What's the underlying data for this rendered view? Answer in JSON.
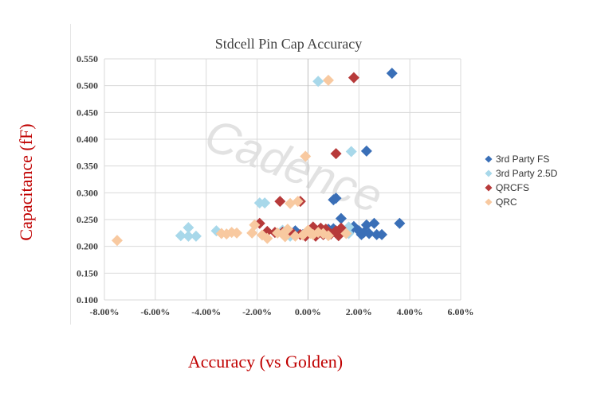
{
  "chart_data": {
    "type": "scatter",
    "title": "Stdcell Pin Cap Accuracy",
    "xlabel": "Accuracy (vs Golden)",
    "ylabel": "Capacitance (fF)",
    "watermark": "Cadence",
    "xlim": [
      -0.08,
      0.06
    ],
    "ylim": [
      0.1,
      0.55
    ],
    "x_ticks": [
      -0.08,
      -0.06,
      -0.04,
      -0.02,
      0.0,
      0.02,
      0.04,
      0.06
    ],
    "x_tick_labels": [
      "-8.00%",
      "-6.00%",
      "-4.00%",
      "-2.00%",
      "0.00%",
      "2.00%",
      "4.00%",
      "6.00%"
    ],
    "y_ticks": [
      0.1,
      0.15,
      0.2,
      0.25,
      0.3,
      0.35,
      0.4,
      0.45,
      0.5,
      0.55
    ],
    "y_tick_labels": [
      "0.100",
      "0.150",
      "0.200",
      "0.250",
      "0.300",
      "0.350",
      "0.400",
      "0.450",
      "0.500",
      "0.550"
    ],
    "grid": true,
    "legend_position": "right",
    "marker": "diamond",
    "series": [
      {
        "name": "3rd Party FS",
        "color": "#3a6fb7",
        "points": [
          [
            0.033,
            0.523
          ],
          [
            0.023,
            0.378
          ],
          [
            0.011,
            0.29
          ],
          [
            0.01,
            0.287
          ],
          [
            0.013,
            0.252
          ],
          [
            0.036,
            0.243
          ],
          [
            0.026,
            0.243
          ],
          [
            0.023,
            0.24
          ],
          [
            0.018,
            0.237
          ],
          [
            0.02,
            0.229
          ],
          [
            0.022,
            0.226
          ],
          [
            0.024,
            0.224
          ],
          [
            0.027,
            0.222
          ],
          [
            0.029,
            0.222
          ],
          [
            0.021,
            0.222
          ],
          [
            0.016,
            0.226
          ],
          [
            0.012,
            0.226
          ],
          [
            -0.002,
            0.222
          ],
          [
            0.005,
            0.229
          ],
          [
            0.01,
            0.233
          ],
          [
            0.008,
            0.232
          ],
          [
            -0.005,
            0.229
          ]
        ]
      },
      {
        "name": "3rd Party 2.5D",
        "color": "#a8d8ea",
        "points": [
          [
            0.004,
            0.508
          ],
          [
            0.017,
            0.377
          ],
          [
            -0.017,
            0.281
          ],
          [
            -0.019,
            0.281
          ],
          [
            -0.047,
            0.235
          ],
          [
            -0.05,
            0.22
          ],
          [
            -0.047,
            0.219
          ],
          [
            -0.044,
            0.219
          ],
          [
            -0.036,
            0.229
          ],
          [
            0.016,
            0.236
          ],
          [
            0.016,
            0.224
          ],
          [
            -0.01,
            0.23
          ],
          [
            -0.007,
            0.219
          ],
          [
            0.0,
            0.224
          ],
          [
            0.006,
            0.222
          ]
        ]
      },
      {
        "name": "QRCFS",
        "color": "#b73a3a",
        "points": [
          [
            0.018,
            0.515
          ],
          [
            0.011,
            0.373
          ],
          [
            -0.011,
            0.284
          ],
          [
            -0.003,
            0.284
          ],
          [
            -0.019,
            0.243
          ],
          [
            -0.016,
            0.228
          ],
          [
            -0.013,
            0.226
          ],
          [
            -0.01,
            0.226
          ],
          [
            -0.006,
            0.224
          ],
          [
            -0.003,
            0.222
          ],
          [
            -0.001,
            0.219
          ],
          [
            0.002,
            0.236
          ],
          [
            0.005,
            0.234
          ],
          [
            0.007,
            0.232
          ],
          [
            0.009,
            0.223
          ],
          [
            0.012,
            0.22
          ],
          [
            0.013,
            0.234
          ],
          [
            0.006,
            0.222
          ],
          [
            0.003,
            0.219
          ],
          [
            0.011,
            0.229
          ]
        ]
      },
      {
        "name": "QRC",
        "color": "#f8c9a0",
        "points": [
          [
            0.008,
            0.51
          ],
          [
            -0.001,
            0.368
          ],
          [
            -0.004,
            0.284
          ],
          [
            -0.007,
            0.28
          ],
          [
            -0.075,
            0.211
          ],
          [
            -0.034,
            0.224
          ],
          [
            -0.032,
            0.223
          ],
          [
            -0.03,
            0.226
          ],
          [
            -0.028,
            0.225
          ],
          [
            -0.022,
            0.225
          ],
          [
            -0.021,
            0.24
          ],
          [
            -0.018,
            0.221
          ],
          [
            -0.016,
            0.215
          ],
          [
            -0.012,
            0.225
          ],
          [
            -0.01,
            0.223
          ],
          [
            -0.008,
            0.232
          ],
          [
            -0.005,
            0.219
          ],
          [
            -0.002,
            0.221
          ],
          [
            0.001,
            0.224
          ],
          [
            0.002,
            0.222
          ],
          [
            0.004,
            0.226
          ],
          [
            0.006,
            0.224
          ],
          [
            0.008,
            0.22
          ],
          [
            0.015,
            0.224
          ],
          [
            -0.009,
            0.218
          ],
          [
            0.0,
            0.23
          ]
        ]
      }
    ]
  }
}
